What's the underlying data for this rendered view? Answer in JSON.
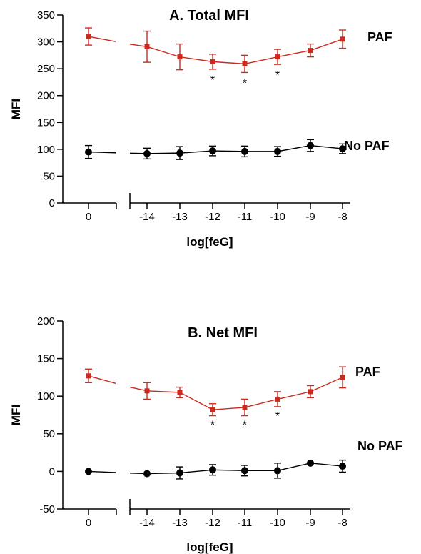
{
  "chart_data": [
    {
      "type": "line",
      "title": "A. Total MFI",
      "ylabel": "MFI",
      "xlabel": "log[feG]",
      "ylim": [
        0,
        350
      ],
      "yticks": [
        0,
        50,
        100,
        150,
        200,
        250,
        300,
        350
      ],
      "categories": [
        "0",
        "-14",
        "-13",
        "-12",
        "-11",
        "-10",
        "-9",
        "-8"
      ],
      "series": [
        {
          "name": "PAF",
          "color": "#cc2a1f",
          "marker": "square",
          "values": [
            310,
            291,
            272,
            263,
            259,
            272,
            284,
            305
          ],
          "errors": [
            16,
            29,
            24,
            14,
            16,
            14,
            12,
            17
          ]
        },
        {
          "name": "No PAF",
          "color": "#000000",
          "marker": "circle",
          "values": [
            95,
            92,
            93,
            97,
            96,
            96,
            107,
            101
          ],
          "errors": [
            12,
            10,
            12,
            9,
            10,
            9,
            11,
            9
          ]
        }
      ],
      "significance": [
        "",
        "",
        "",
        "*",
        "*",
        "*",
        "",
        ""
      ]
    },
    {
      "type": "line",
      "title": "B. Net MFI",
      "ylabel": "MFI",
      "xlabel": "log[feG]",
      "ylim": [
        -50,
        200
      ],
      "yticks": [
        -50,
        0,
        50,
        100,
        150,
        200
      ],
      "categories": [
        "0",
        "-14",
        "-13",
        "-12",
        "-11",
        "-10",
        "-9",
        "-8"
      ],
      "series": [
        {
          "name": "PAF",
          "color": "#cc2a1f",
          "marker": "square",
          "values": [
            127,
            107,
            105,
            82,
            85,
            96,
            106,
            125
          ],
          "errors": [
            9,
            11,
            7,
            8,
            11,
            10,
            8,
            14
          ]
        },
        {
          "name": "No PAF",
          "color": "#000000",
          "marker": "circle",
          "values": [
            0,
            -3,
            -2,
            2,
            1,
            1,
            11,
            7
          ],
          "errors": [
            0,
            0,
            8,
            7,
            7,
            10,
            0,
            8
          ]
        }
      ],
      "significance": [
        "",
        "",
        "",
        "*",
        "*",
        "*",
        "",
        ""
      ]
    }
  ]
}
